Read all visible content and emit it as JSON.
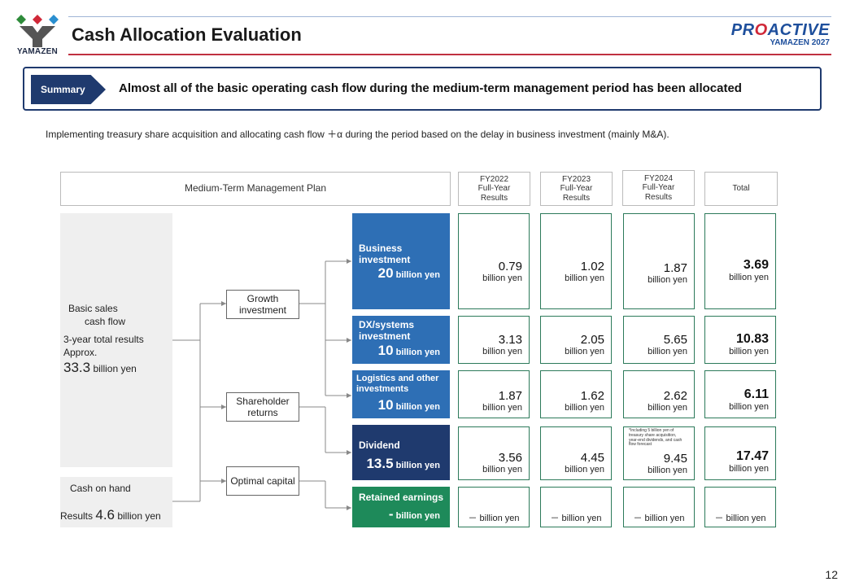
{
  "header": {
    "logo_text": "YAMAZEN",
    "title": "Cash Allocation Evaluation",
    "brand_main_part1": "PR",
    "brand_main_o": "O",
    "brand_main_part2": "ACTIVE",
    "brand_sub": "YAMAZEN 2027"
  },
  "summary": {
    "tag": "Summary",
    "text": "Almost all of the basic operating cash flow during the medium-term management period has been allocated"
  },
  "subline": "Implementing treasury share acquisition and allocating cash flow ＋α during the period based on the delay in business investment (mainly M&A).",
  "table_head": {
    "plan": "Medium-Term Management Plan",
    "fy2022": [
      "FY2022",
      "Full-Year",
      "Results"
    ],
    "fy2023": [
      "FY2023",
      "Full-Year",
      "Results"
    ],
    "fy2024": [
      "FY2024",
      "Full-Year",
      "Results"
    ],
    "total": "Total"
  },
  "left": {
    "basic_line1": "Basic sales",
    "basic_line2": "cash flow",
    "basic_line3": "3-year total results",
    "basic_line4": "Approx.",
    "basic_value": "33.3",
    "basic_unit": "billion yen",
    "cash_label": "Cash on hand",
    "cash_prefix": "Results",
    "cash_value": "4.6",
    "cash_unit": "billion yen"
  },
  "flows": {
    "growth": "Growth investment",
    "shareholder": "Shareholder returns",
    "optimal": "Optimal capital"
  },
  "categories": [
    {
      "label": "Business investment",
      "amount": "20",
      "unit": "billion yen",
      "color": "#2e6fb5"
    },
    {
      "label": "DX/systems investment",
      "amount": "10",
      "unit": "billion yen",
      "color": "#2e6fb5"
    },
    {
      "label": "Logistics and other investments",
      "amount": "10",
      "unit": "billion yen",
      "color": "#2e6fb5"
    },
    {
      "label": "Dividend",
      "amount": "13.5",
      "unit": "billion yen",
      "color": "#1f3a6e"
    },
    {
      "label": "Retained earnings",
      "amount": "-",
      "unit": "billion yen",
      "color": "#1e8a5a"
    }
  ],
  "rows": [
    {
      "fy2022": "0.79",
      "fy2023": "1.02",
      "fy2024": "1.87",
      "total": "3.69"
    },
    {
      "fy2022": "3.13",
      "fy2023": "2.05",
      "fy2024": "5.65",
      "total": "10.83"
    },
    {
      "fy2022": "1.87",
      "fy2023": "1.62",
      "fy2024": "2.62",
      "total": "6.11"
    },
    {
      "fy2022": "3.56",
      "fy2023": "4.45",
      "fy2024": "9.45",
      "total": "17.47"
    }
  ],
  "unit": "billion yen",
  "dash_cell": "－ billion yen",
  "dividend_note": "*Including 5 billion yen of treasury share acquisition, year-end dividends, and cash flow forecast",
  "page_number": "12"
}
